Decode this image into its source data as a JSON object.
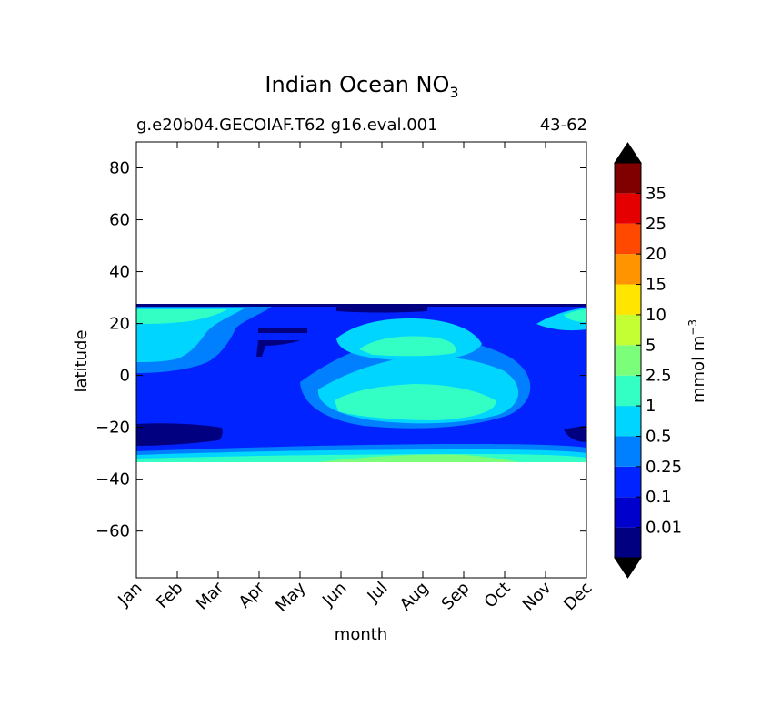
{
  "chart_data": {
    "type": "contour",
    "title": "Indian Ocean NO",
    "title_subscript": "3",
    "subtitle_left": "g.e20b04.GECOIAF.T62 g16.eval.001",
    "subtitle_right": "43-62",
    "xlabel": "month",
    "ylabel": "latitude",
    "x_ticks": [
      "Jan",
      "Feb",
      "Mar",
      "Apr",
      "May",
      "Jun",
      "Jul",
      "Aug",
      "Sep",
      "Oct",
      "Nov",
      "Dec"
    ],
    "ylim": [
      -78,
      90
    ],
    "y_ticks": [
      80,
      60,
      40,
      20,
      0,
      -20,
      -40,
      -60
    ],
    "y_tick_labels": [
      "80",
      "60",
      "40",
      "20",
      "0",
      "−20",
      "−40",
      "−60"
    ],
    "data_lat_range": [
      -34,
      27
    ],
    "colorbar": {
      "label": "mmol m",
      "label_superscript": "−3",
      "extend": "both",
      "levels": [
        0.01,
        0.1,
        0.25,
        0.5,
        1,
        2.5,
        5,
        10,
        15,
        20,
        25,
        35
      ],
      "level_labels": [
        "0.01",
        "0.1",
        "0.25",
        "0.5",
        "1",
        "2.5",
        "5",
        "10",
        "15",
        "20",
        "25",
        "35"
      ],
      "colors": [
        "#000080",
        "#0000cd",
        "#0023ff",
        "#0080ff",
        "#00d5ff",
        "#33ffc4",
        "#7bff7b",
        "#c4ff33",
        "#ffe500",
        "#ff9400",
        "#ff4800",
        "#e50000",
        "#800000"
      ],
      "under_color": "#000000",
      "over_color": "#000000"
    },
    "field_features": [
      {
        "level_index": 4,
        "region": "northern coastal band",
        "months": [
          "Jan",
          "Apr"
        ],
        "lat_range": [
          19,
          26
        ]
      },
      {
        "level_index": 4,
        "region": "northern band",
        "months": [
          "Jan",
          "Mar"
        ],
        "lat_range": [
          7,
          21
        ]
      },
      {
        "level_index": 5,
        "region": "northern core",
        "months": [
          "Jan",
          "Mar"
        ],
        "lat_range": [
          20,
          25
        ]
      },
      {
        "level_index": 1,
        "region": "low-nutrient northern pool",
        "months": [
          "Mar",
          "Jun"
        ],
        "lat_range": [
          6,
          20
        ]
      },
      {
        "level_index": 4,
        "region": "equatorial summer tongue",
        "months": [
          "Jun",
          "Oct"
        ],
        "lat_range": [
          -14,
          18
        ]
      },
      {
        "level_index": 5,
        "region": "equatorial summer core",
        "months": [
          "Jul",
          "Sep"
        ],
        "lat_range": [
          -11,
          -3
        ]
      },
      {
        "level_index": 5,
        "region": "northern summer core",
        "months": [
          "Jul",
          "Sep"
        ],
        "lat_range": [
          7,
          14
        ]
      },
      {
        "level_index": 0,
        "region": "southern minimum",
        "months": [
          "Jan",
          "Mar"
        ],
        "lat_range": [
          -28,
          -19
        ]
      },
      {
        "level_index": 4,
        "region": "southern boundary band",
        "months": [
          "Jan",
          "Dec"
        ],
        "lat_range": [
          -33,
          -29
        ]
      },
      {
        "level_index": 6,
        "region": "southern boundary maximum",
        "months": [
          "Jun",
          "Oct"
        ],
        "lat_range": [
          -34,
          -32
        ]
      }
    ]
  }
}
